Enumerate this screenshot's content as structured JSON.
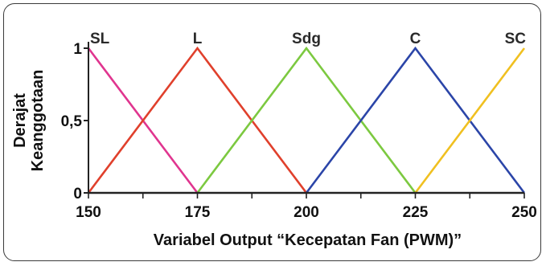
{
  "chart_data": {
    "type": "line",
    "xlabel": "Variabel Output “Kecepatan Fan (PWM)”",
    "ylabel": "Derajat\nKeanggotaan",
    "xlim": [
      150,
      250
    ],
    "ylim": [
      0,
      1
    ],
    "x_ticks": [
      150,
      175,
      200,
      225,
      250
    ],
    "x_tick_labels": [
      "150",
      "175",
      "200",
      "225",
      "250"
    ],
    "y_ticks": [
      0,
      0.5,
      1
    ],
    "y_tick_labels": [
      "0",
      "0,5",
      "1"
    ],
    "grid": false,
    "series": [
      {
        "name": "SL",
        "color": "#e0358f",
        "x": [
          150,
          175
        ],
        "y": [
          1,
          0
        ]
      },
      {
        "name": "L",
        "color": "#e0402c",
        "x": [
          150,
          175,
          200
        ],
        "y": [
          0,
          1,
          0
        ]
      },
      {
        "name": "Sdg",
        "color": "#7cc940",
        "x": [
          175,
          200,
          225
        ],
        "y": [
          0,
          1,
          0
        ]
      },
      {
        "name": "C",
        "color": "#2b45a8",
        "x": [
          200,
          225,
          250
        ],
        "y": [
          0,
          1,
          0
        ]
      },
      {
        "name": "SC",
        "color": "#f0c020",
        "x": [
          225,
          250
        ],
        "y": [
          0,
          1
        ]
      }
    ],
    "series_label_x": [
      150,
      175,
      200,
      225,
      250
    ]
  }
}
